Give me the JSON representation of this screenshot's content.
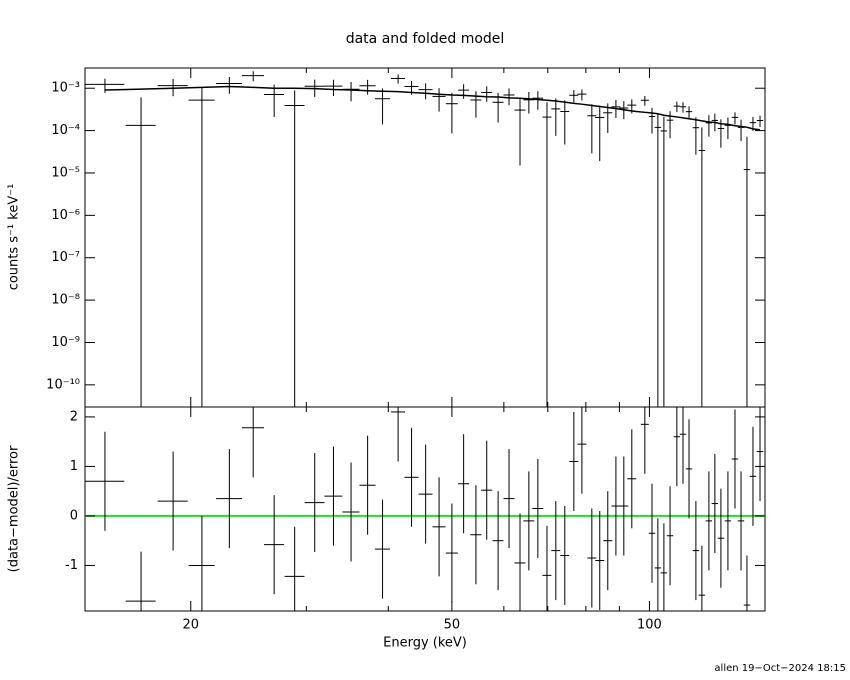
{
  "chart_data": {
    "type": "errorbar",
    "title": "data and folded model",
    "xlabel": "Energy (keV)",
    "ylabel": "counts s⁻¹ keV⁻¹",
    "residual_ylabel": "(data−model)/error",
    "footer": "allen 19−Oct−2024 18:15",
    "xlog": true,
    "ylog": true,
    "xlim": [
      13.8,
      150
    ],
    "xticks": [
      20,
      50,
      100
    ],
    "xminorticks": [
      30,
      40,
      60,
      70,
      80,
      90
    ],
    "ylim": [
      3e-11,
      0.003
    ],
    "yticks": [
      {
        "value": 1e-10,
        "label": "10⁻¹⁰"
      },
      {
        "value": 1e-09,
        "label": "10⁻⁹"
      },
      {
        "value": 1e-08,
        "label": "10⁻⁸"
      },
      {
        "value": 1e-07,
        "label": "10⁻⁷"
      },
      {
        "value": 1e-06,
        "label": "10⁻⁶"
      },
      {
        "value": 1e-05,
        "label": "10⁻⁵"
      },
      {
        "value": 0.0001,
        "label": "10⁻⁴"
      },
      {
        "value": 0.001,
        "label": "10⁻³"
      }
    ],
    "residual_ylim": [
      -1.92,
      2.2
    ],
    "residual_yticks": [
      -1,
      0,
      1,
      2
    ],
    "data_color": "#000000",
    "model_color": "#000000",
    "reference_line": {
      "value": 0,
      "color": "#22dd22"
    },
    "x": [
      14.8,
      16.8,
      18.8,
      20.8,
      22.9,
      24.9,
      26.8,
      28.8,
      30.9,
      33.0,
      35.1,
      37.2,
      39.2,
      41.4,
      43.4,
      45.6,
      47.8,
      50.0,
      52.1,
      54.4,
      56.5,
      58.8,
      61.1,
      63.5,
      65.5,
      67.6,
      69.8,
      72.0,
      74.3,
      76.7,
      78.9,
      81.7,
      84.0,
      86.4,
      88.9,
      91.4,
      94.0,
      98.4,
      100.9,
      103.0,
      105.2,
      107.5,
      110.1,
      112.5,
      114.9,
      117.7,
      120.2,
      123.2,
      125.8,
      128.5,
      131.7,
      135.0,
      137.9,
      140.8,
      143.8,
      147.4
    ],
    "xerr": [
      1.04,
      0.88,
      0.99,
      0.95,
      1.04,
      0.96,
      0.94,
      1.01,
      1.08,
      1.04,
      1.05,
      1.05,
      1.03,
      1.02,
      1.07,
      1.12,
      1.09,
      1.05,
      1.01,
      1.05,
      1.09,
      1.13,
      1.18,
      1.23,
      1.26,
      1.3,
      1.1,
      1.14,
      1.17,
      1.21,
      1.25,
      1.29,
      1.33,
      1.37,
      1.4,
      1.44,
      1.49,
      1.38,
      1.13,
      1.16,
      1.18,
      1.21,
      1.24,
      1.26,
      1.29,
      1.32,
      1.35,
      1.38,
      1.41,
      1.44,
      1.48,
      1.52,
      1.55,
      1.58,
      1.61,
      1.66
    ],
    "rate": [
      0.00123,
      0.000133,
      0.00115,
      0.000525,
      0.00129,
      0.00198,
      0.00071,
      0.00039,
      0.00111,
      0.00112,
      0.000946,
      0.00114,
      0.000565,
      0.0017,
      0.0011,
      0.000927,
      0.000641,
      0.000431,
      0.000901,
      0.000527,
      0.000794,
      0.000465,
      0.000693,
      0.000305,
      0.000532,
      0.000581,
      0.000208,
      0.000325,
      0.000282,
      0.000682,
      0.000725,
      0.000224,
      0.000204,
      0.000263,
      0.000363,
      0.000341,
      0.000399,
      0.00052,
      0.000215,
      0.000119,
      9.8e-05,
      0.000176,
      0.000378,
      0.000365,
      0.00028,
      0.000117,
      3.4e-05,
      0.000152,
      0.000174,
      0.000112,
      0.000133,
      0.000205,
      0.000119,
      1.2e-05,
      0.000154,
      0.000173
    ],
    "rate_error": [
      0.000455,
      0.000475,
      0.0005,
      0.000525,
      0.00055,
      0.000525,
      0.0005,
      0.0005,
      0.00049,
      0.000465,
      0.000455,
      0.000435,
      0.000425,
      0.000415,
      0.000395,
      0.00038,
      0.00036,
      0.000345,
      0.00034,
      0.000325,
      0.000315,
      0.00031,
      0.000295,
      0.00029,
      0.00028,
      0.00027,
      0.00026,
      0.00025,
      0.000235,
      0.00022,
      0.00021,
      0.000195,
      0.000185,
      0.000175,
      0.000165,
      0.000155,
      0.000145,
      0.000135,
      0.00013,
      0.000125,
      0.000115,
      0.00011,
      0.000105,
      0.0001,
      9.5e-05,
      9e-05,
      8.5e-05,
      8e-05,
      7.75e-05,
      7.25e-05,
      7e-05,
      6.5e-05,
      6.25e-05,
      6e-05,
      5.5e-05,
      5.25e-05
    ],
    "model": [
      0.00091,
      0.00095,
      0.001,
      0.00105,
      0.0011,
      0.00105,
      0.001,
      0.001,
      0.00098,
      0.00093,
      0.00091,
      0.00087,
      0.00085,
      0.00083,
      0.00079,
      0.00076,
      0.00072,
      0.00069,
      0.00068,
      0.00065,
      0.00063,
      0.00062,
      0.00059,
      0.00058,
      0.00056,
      0.00054,
      0.00052,
      0.0005,
      0.00047,
      0.00044,
      0.00042,
      0.00039,
      0.00037,
      0.00035,
      0.00033,
      0.00031,
      0.00029,
      0.00027,
      0.00026,
      0.00025,
      0.00023,
      0.00022,
      0.00021,
      0.0002,
      0.00019,
      0.00018,
      0.00017,
      0.00016,
      0.000155,
      0.000145,
      0.00014,
      0.00013,
      0.000125,
      0.00012,
      0.00011,
      0.000105
    ],
    "residual": [
      0.7,
      -1.72,
      0.3,
      -1.0,
      0.35,
      1.78,
      -0.58,
      -1.22,
      0.27,
      0.4,
      0.08,
      0.62,
      -0.67,
      2.1,
      0.78,
      0.44,
      -0.22,
      -0.75,
      0.65,
      -0.38,
      0.52,
      -0.5,
      0.35,
      -0.95,
      -0.1,
      0.15,
      -1.2,
      -0.7,
      -0.8,
      1.1,
      1.45,
      -0.85,
      -0.9,
      -0.5,
      0.2,
      0.2,
      0.75,
      1.85,
      -0.35,
      -1.05,
      -1.15,
      -0.4,
      1.6,
      1.65,
      0.95,
      -0.7,
      -1.6,
      -0.1,
      0.25,
      -0.45,
      -0.1,
      1.15,
      -0.1,
      -1.8,
      0.8,
      1.3
    ],
    "residual_error": 1
  }
}
